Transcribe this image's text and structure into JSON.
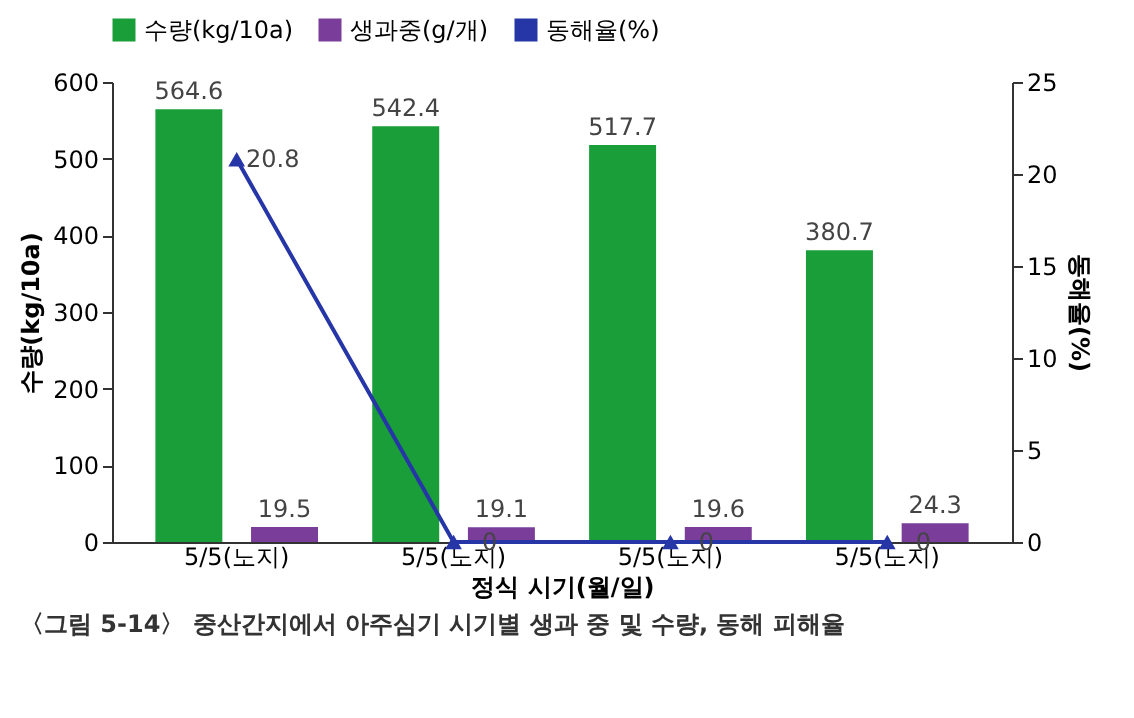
{
  "chart_data": {
    "type": "bar",
    "categories": [
      "5/5(노지)",
      "5/5(노지)",
      "5/5(노지)",
      "5/5(노지)"
    ],
    "xlabel": "정식 시기(월/일)",
    "ylabel": "수량(kg/10a)",
    "y2label": "동해율(%)",
    "ylim": [
      0,
      600
    ],
    "yticks": [
      0,
      100,
      200,
      300,
      400,
      500,
      600
    ],
    "y2lim": [
      0,
      25
    ],
    "y2ticks": [
      0,
      5,
      10,
      15,
      20,
      25
    ],
    "series": [
      {
        "name": "수량(kg/10a)",
        "color": "#1a9e3a",
        "values": [
          564.6,
          542.4,
          517.7,
          380.7
        ]
      },
      {
        "name": "생과중(g/개)",
        "color": "#7a3d9a",
        "values": [
          19.5,
          19.1,
          19.6,
          24.3
        ]
      },
      {
        "name": "동해율(%)",
        "color": "#2636a6",
        "type": "line",
        "axis": "y2",
        "values": [
          20.8,
          0,
          0,
          0
        ]
      }
    ],
    "marker": "triangle",
    "data_labels": true,
    "legend": "top",
    "annotations": [
      "〈그림 5-14〉 중산간지에서 아주심기 시기별 생과 중 및 수량, 동해 피해율"
    ]
  }
}
